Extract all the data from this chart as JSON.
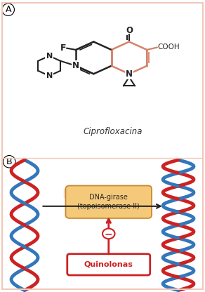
{
  "panel_a_label": "A",
  "panel_b_label": "B",
  "molecule_name": "Ciprofloxacina",
  "dna_girase_label": "DNA-girase\n(topoisomerase II)",
  "quinolonas_label": "Quinolonas",
  "minus_label": "−",
  "bg_color": "#ffffff",
  "panel_border_color": "#f0c8b8",
  "orange_ring_color": "#d4826a",
  "black_bond_color": "#222222",
  "dna_red": "#cc2222",
  "dna_blue": "#3377bb",
  "arrow_color": "#222222",
  "quinolonas_box_color": "#cc2222",
  "dna_girase_fill": "#f5c97a",
  "dna_girase_edge": "#c8882a",
  "watermark_color": "#e8a090",
  "label_fontsize": 9,
  "molecule_fontsize": 8,
  "dna_girase_fontsize": 7,
  "quinolonas_fontsize": 8
}
